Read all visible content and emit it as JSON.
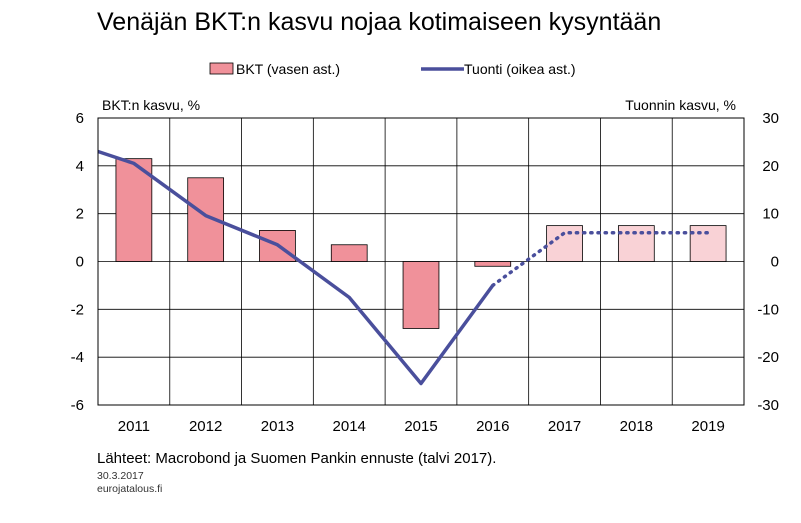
{
  "chart_data": {
    "type": "bar+line",
    "title": "Venäjän BKT:n kasvu nojaa kotimaiseen kysyntään",
    "categories": [
      "2011",
      "2012",
      "2013",
      "2014",
      "2015",
      "2016",
      "2017",
      "2018",
      "2019"
    ],
    "forecast_from": "2017",
    "left_axis": {
      "label": "BKT:n kasvu, %",
      "ylim": [
        -6,
        6
      ],
      "ticks": [
        "6",
        "4",
        "2",
        "0",
        "-2",
        "-4",
        "-6"
      ]
    },
    "right_axis": {
      "label": "Tuonnin kasvu, %",
      "ylim": [
        -30,
        30
      ],
      "ticks": [
        "30",
        "20",
        "10",
        "0",
        "-10",
        "-20",
        "-30"
      ]
    },
    "bar_series": {
      "name": "BKT (vasen ast.)",
      "axis": "left",
      "values": [
        4.3,
        3.5,
        1.3,
        0.7,
        -2.8,
        -0.2,
        1.5,
        1.5,
        1.5
      ],
      "color": "#f0919a",
      "forecast_color": "#f9d2d6"
    },
    "line_series": {
      "name": "Tuonti (oikea ast.)",
      "axis": "right",
      "x": [
        2010.5,
        2011,
        2012,
        2013,
        2014,
        2015,
        2016,
        2017,
        2018,
        2019
      ],
      "values": [
        23.0,
        20.5,
        9.6,
        3.5,
        -7.5,
        -25.5,
        -5.0,
        6.0,
        6.0,
        6.0
      ],
      "color": "#4a4f9c"
    },
    "grid": true,
    "legend_position": "top"
  },
  "footer": {
    "source": "Lähteet: Macrobond ja Suomen Pankin ennuste (talvi 2017).",
    "date": "30.3.2017",
    "site": "eurojatalous.fi"
  }
}
